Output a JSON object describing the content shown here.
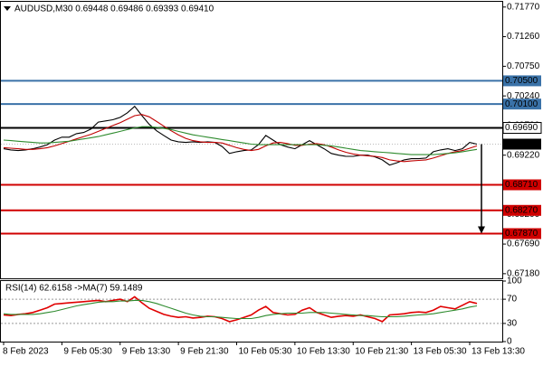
{
  "chart_data": [
    {
      "type": "line",
      "title": "AUDUSD,M30  0.69448 0.69486 0.69393 0.69410",
      "categories": [
        "8 Feb 2023",
        null,
        null,
        null,
        null,
        null,
        null,
        null,
        "9 Feb 05:30",
        null,
        null,
        null,
        null,
        null,
        null,
        null,
        "9 Feb 13:30",
        null,
        null,
        null,
        null,
        null,
        null,
        null,
        "9 Feb 21:30",
        null,
        null,
        null,
        null,
        null,
        null,
        null,
        "10 Feb 05:30",
        null,
        null,
        null,
        null,
        null,
        null,
        null,
        "10 Feb 13:30",
        null,
        null,
        null,
        null,
        null,
        null,
        null,
        "10 Feb 21:30",
        null,
        null,
        null,
        null,
        null,
        null,
        null,
        "13 Feb 05:30",
        null,
        null,
        null,
        null,
        null,
        null,
        null,
        "13 Feb 13:30",
        null
      ],
      "series": [
        {
          "color": "#000000",
          "values": [
            0.6933,
            0.6931,
            0.693,
            0.6931,
            0.6933,
            0.6936,
            0.694,
            0.6948,
            0.6953,
            0.6953,
            0.6959,
            0.6961,
            0.6967,
            0.6979,
            0.6981,
            0.6983,
            0.6987,
            0.6995,
            0.7006,
            0.699,
            0.6975,
            0.6964,
            0.6956,
            0.6948,
            0.6945,
            0.6944,
            0.6945,
            0.6944,
            0.6945,
            0.6944,
            0.6937,
            0.6925,
            0.6928,
            0.693,
            0.6931,
            0.694,
            0.6956,
            0.6948,
            0.694,
            0.6936,
            0.6933,
            0.694,
            0.6947,
            0.694,
            0.6933,
            0.6925,
            0.6922,
            0.692,
            0.692,
            0.6922,
            0.6922,
            0.6919,
            0.6914,
            0.6905,
            0.6909,
            0.6914,
            0.6916,
            0.6916,
            0.6917,
            0.6928,
            0.6931,
            0.6933,
            0.693,
            0.6933,
            0.6944,
            0.6941
          ]
        },
        {
          "color": "#c00000",
          "values": [
            0.6935,
            0.6934,
            0.6933,
            0.6932,
            0.6932,
            0.6933,
            0.6935,
            0.6938,
            0.6942,
            0.6946,
            0.695,
            0.6954,
            0.6958,
            0.6963,
            0.6968,
            0.6973,
            0.6978,
            0.6984,
            0.699,
            0.6992,
            0.6988,
            0.698,
            0.6972,
            0.6964,
            0.6957,
            0.6951,
            0.6947,
            0.6945,
            0.6944,
            0.6944,
            0.6943,
            0.6939,
            0.6935,
            0.6932,
            0.693,
            0.6932,
            0.6938,
            0.6943,
            0.6944,
            0.6942,
            0.6939,
            0.6939,
            0.6941,
            0.6942,
            0.694,
            0.6936,
            0.6931,
            0.6927,
            0.6924,
            0.6922,
            0.6921,
            0.692,
            0.6918,
            0.6914,
            0.6912,
            0.6911,
            0.6912,
            0.6913,
            0.6914,
            0.6917,
            0.6921,
            0.6925,
            0.6928,
            0.693,
            0.6934,
            0.6938
          ]
        },
        {
          "color": "#2e8b2e",
          "values": [
            0.6948,
            0.6947,
            0.6946,
            0.6945,
            0.6944,
            0.6943,
            0.6943,
            0.6944,
            0.6945,
            0.6946,
            0.6948,
            0.695,
            0.6952,
            0.6954,
            0.6957,
            0.696,
            0.6963,
            0.6966,
            0.6969,
            0.6971,
            0.6971,
            0.697,
            0.6968,
            0.6966,
            0.6963,
            0.696,
            0.6957,
            0.6955,
            0.6953,
            0.6951,
            0.6949,
            0.6947,
            0.6945,
            0.6943,
            0.6941,
            0.694,
            0.694,
            0.694,
            0.694,
            0.694,
            0.694,
            0.694,
            0.694,
            0.694,
            0.6939,
            0.6938,
            0.6936,
            0.6934,
            0.6932,
            0.693,
            0.6929,
            0.6928,
            0.6927,
            0.6926,
            0.6925,
            0.6924,
            0.6923,
            0.6923,
            0.6923,
            0.6923,
            0.6924,
            0.6925,
            0.6926,
            0.6928,
            0.693,
            0.6932
          ]
        }
      ],
      "ylim": [
        0.671,
        0.7186
      ],
      "yticks": [
        {
          "value": 0.7177,
          "label": "0.71770"
        },
        {
          "value": 0.7126,
          "label": "0.71260"
        },
        {
          "value": 0.7075,
          "label": "0.70750"
        },
        {
          "value": 0.7024,
          "label": "0.70240"
        },
        {
          "value": 0.6973,
          "label": "0.69730"
        },
        {
          "value": 0.6922,
          "label": "0.69220"
        },
        {
          "value": 0.6871,
          "label": "0.68710"
        },
        {
          "value": 0.682,
          "label": "0.68200"
        },
        {
          "value": 0.6769,
          "label": "0.67690"
        },
        {
          "value": 0.6718,
          "label": "0.67180"
        }
      ],
      "levels": [
        {
          "value": 0.705,
          "label": "0.70500",
          "color": "#3a72a8"
        },
        {
          "value": 0.701,
          "label": "0.70100",
          "color": "#3a72a8"
        },
        {
          "value": 0.6969,
          "label": "0.69690",
          "color": "#000000"
        },
        {
          "value": 0.6871,
          "label": "0.68710",
          "color": "#d00000"
        },
        {
          "value": 0.6827,
          "label": "0.68270",
          "color": "#d00000"
        },
        {
          "value": 0.6787,
          "label": "0.67870",
          "color": "#d00000"
        }
      ],
      "current": {
        "value": 0.6941,
        "label": "0.69410"
      }
    },
    {
      "type": "line",
      "title": "RSI(14) 62.6158 ->MA(7) 59.1489",
      "series": [
        {
          "color": "#e00000",
          "values": [
            44,
            43,
            45,
            46,
            48,
            52,
            56,
            62,
            63,
            64,
            65,
            66,
            67,
            68,
            66,
            68,
            70,
            66,
            74,
            64,
            55,
            50,
            45,
            42,
            40,
            41,
            39,
            40,
            42,
            41,
            38,
            33,
            36,
            40,
            44,
            52,
            58,
            48,
            46,
            44,
            45,
            52,
            56,
            48,
            44,
            40,
            42,
            43,
            42,
            44,
            41,
            38,
            33,
            44,
            45,
            46,
            48,
            49,
            48,
            52,
            58,
            56,
            54,
            60,
            66,
            63
          ]
        },
        {
          "color": "#2e8b2e",
          "values": [
            46,
            45,
            45,
            45,
            45,
            46,
            48,
            50,
            53,
            56,
            59,
            61,
            63,
            65,
            66,
            66,
            67,
            67,
            68,
            68,
            66,
            63,
            59,
            55,
            51,
            47,
            44,
            42,
            41,
            41,
            40,
            39,
            38,
            38,
            38,
            40,
            43,
            45,
            46,
            47,
            47,
            47,
            48,
            48,
            48,
            47,
            46,
            45,
            44,
            43,
            43,
            42,
            41,
            41,
            41,
            42,
            43,
            44,
            45,
            46,
            48,
            50,
            52,
            54,
            57,
            59
          ]
        }
      ],
      "ylim": [
        0,
        100
      ],
      "yticks": [
        100,
        70,
        30,
        0
      ]
    }
  ]
}
